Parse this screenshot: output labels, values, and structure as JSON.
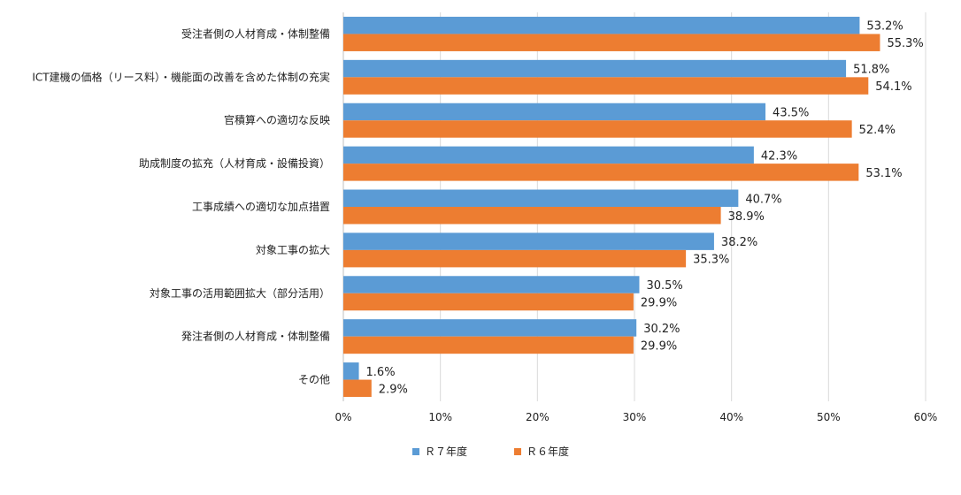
{
  "colors": {
    "r7": "#5b9bd5",
    "r6": "#ed7d31",
    "grid": "#d9d9d9",
    "text": "#222222"
  },
  "chart_data": {
    "type": "bar",
    "orientation": "horizontal",
    "categories": [
      "受注者側の人材育成・体制整備",
      "ICT建機の価格（リース料）・機能面の改善を含めた体制の充実",
      "官積算への適切な反映",
      "助成制度の拡充（人材育成・設備投資）",
      "工事成績への適切な加点措置",
      "対象工事の拡大",
      "対象工事の活用範囲拡大（部分活用）",
      "発注者側の人材育成・体制整備",
      "その他"
    ],
    "series": [
      {
        "name": "Ｒ７年度",
        "values": [
          53.2,
          51.8,
          43.5,
          42.3,
          40.7,
          38.2,
          30.5,
          30.2,
          1.6
        ],
        "labels": [
          "53.2%",
          "51.8%",
          "43.5%",
          "42.3%",
          "40.7%",
          "38.2%",
          "30.5%",
          "30.2%",
          "1.6%"
        ]
      },
      {
        "name": "Ｒ６年度",
        "values": [
          55.3,
          54.1,
          52.4,
          53.1,
          38.9,
          35.3,
          29.9,
          29.9,
          2.9
        ],
        "labels": [
          "55.3%",
          "54.1%",
          "52.4%",
          "53.1%",
          "38.9%",
          "35.3%",
          "29.9%",
          "29.9%",
          "2.9%"
        ]
      }
    ],
    "xlim": [
      0,
      60
    ],
    "x_ticks": [
      0,
      10,
      20,
      30,
      40,
      50,
      60
    ],
    "x_tick_labels": [
      "0%",
      "10%",
      "20%",
      "30%",
      "40%",
      "50%",
      "60%"
    ],
    "grid": true,
    "legend_position": "bottom"
  }
}
